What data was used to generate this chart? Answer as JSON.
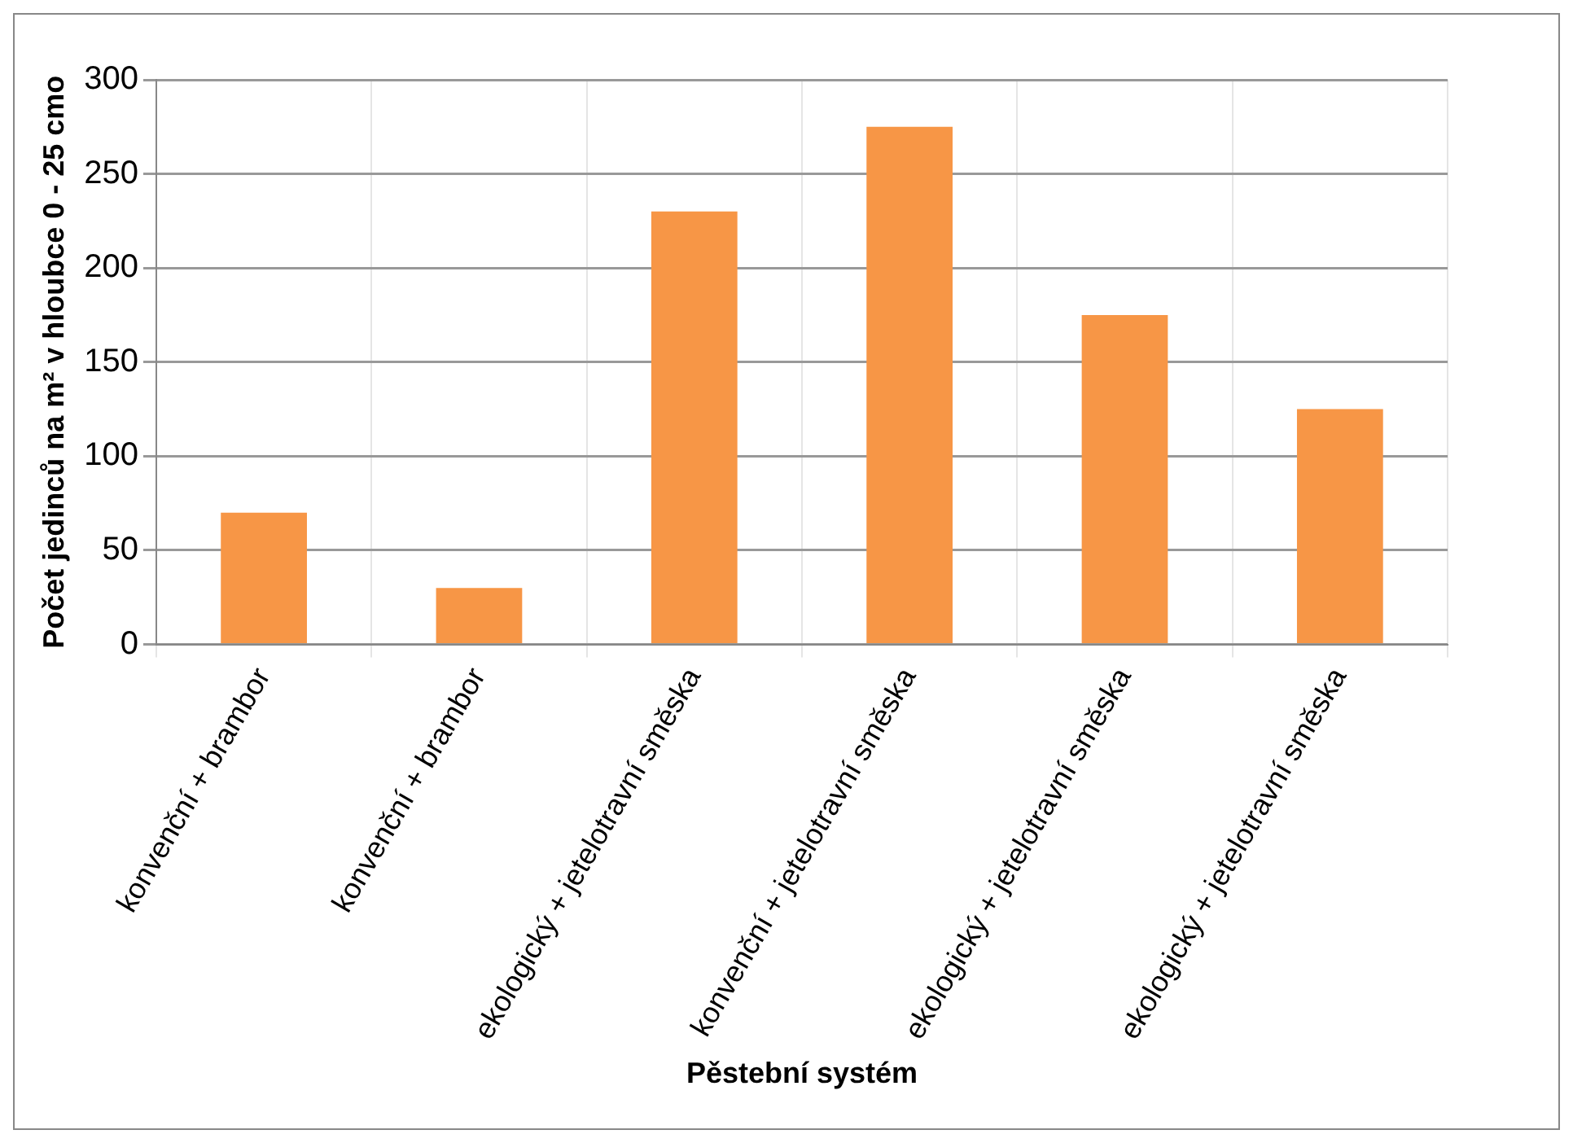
{
  "chart_data": {
    "type": "bar",
    "xlabel": "Pěstební systém",
    "ylabel": "Počet jedinců na m² v hloubce 0 - 25 cmo",
    "categories": [
      "konvenční + brambor",
      "konvenční + brambor",
      "ekologický + jetelotravní směska",
      "konvenční + jetelotravní směska",
      "ekologický + jetelotravní směska",
      "ekologický + jetelotravní směska"
    ],
    "values": [
      70,
      30,
      230,
      275,
      175,
      125
    ],
    "color": "#f79646",
    "ylim": [
      0,
      300
    ],
    "yticks": [
      0,
      50,
      100,
      150,
      200,
      250,
      300
    ],
    "grid": true
  }
}
